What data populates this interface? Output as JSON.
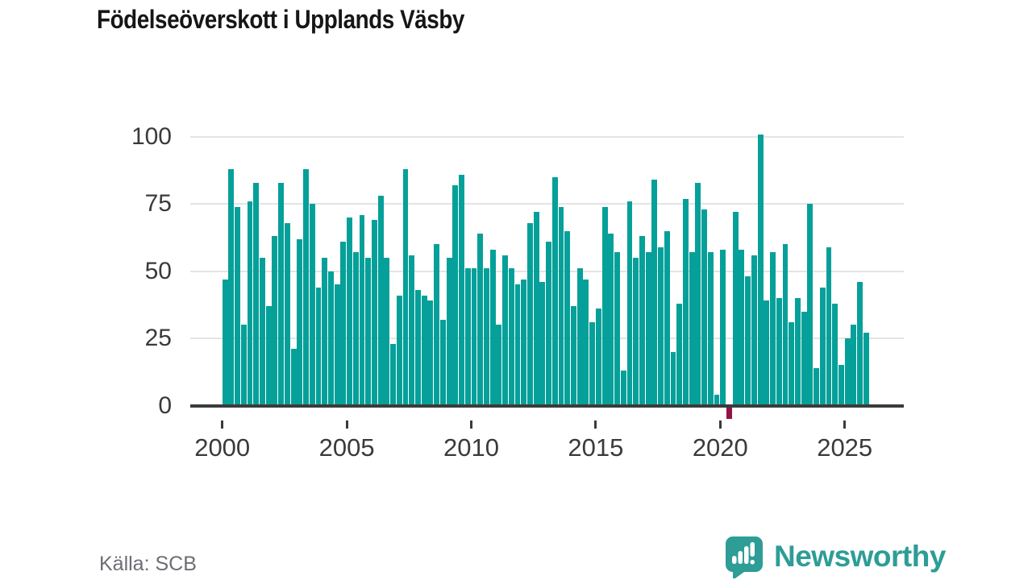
{
  "title": "Födelseöverskott i Upplands Väsby",
  "source": "Källa: SCB",
  "branding": {
    "logo_text": "Newsworthy"
  },
  "colors": {
    "bar": "#05a099",
    "bar_negative": "#951245",
    "axis": "#3b3b3b",
    "gridline": "#e4e4e4",
    "tick_label": "#3a3a3a",
    "title": "#161616",
    "source_text": "#6d6d74",
    "logo": "#2d9d96"
  },
  "chart_data": {
    "type": "bar",
    "title": "Födelseöverskott i Upplands Väsby",
    "xlabel": "",
    "ylabel": "",
    "frequency": "quarterly",
    "x_start": "2000-Q1",
    "x_end": "2025-Q4",
    "x_tick_labels": [
      "2000",
      "2005",
      "2010",
      "2015",
      "2020",
      "2025"
    ],
    "y_tick_labels": [
      "0",
      "25",
      "50",
      "75",
      "100"
    ],
    "y_tick_values": [
      0,
      25,
      50,
      75,
      100
    ],
    "ylim": [
      -8,
      104
    ],
    "grid": "horizontal",
    "legend": "none",
    "values": [
      47,
      88,
      74,
      30,
      76,
      83,
      55,
      37,
      63,
      83,
      68,
      21,
      62,
      88,
      75,
      44,
      55,
      50,
      45,
      61,
      70,
      57,
      71,
      55,
      69,
      78,
      55,
      23,
      41,
      88,
      56,
      43,
      41,
      39,
      60,
      32,
      55,
      82,
      86,
      51,
      51,
      64,
      51,
      58,
      30,
      56,
      51,
      45,
      47,
      68,
      72,
      46,
      61,
      85,
      74,
      65,
      37,
      51,
      47,
      31,
      36,
      74,
      64,
      57,
      13,
      76,
      55,
      63,
      57,
      84,
      59,
      65,
      20,
      38,
      77,
      57,
      83,
      73,
      57,
      4,
      58,
      -5,
      72,
      58,
      48,
      56,
      101,
      39,
      57,
      40,
      60,
      31,
      40,
      35,
      75,
      14,
      44,
      59,
      38,
      15,
      25,
      30,
      46,
      27
    ]
  }
}
